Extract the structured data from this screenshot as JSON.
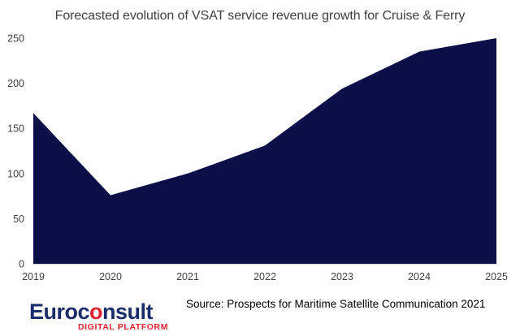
{
  "chart_data": {
    "type": "area",
    "title": "Forecasted evolution of VSAT service revenue growth  for Cruise & Ferry",
    "xlabel": "",
    "ylabel": "",
    "categories": [
      "2019",
      "2020",
      "2021",
      "2022",
      "2023",
      "2024",
      "2025"
    ],
    "values": [
      167,
      76,
      100,
      131,
      194,
      235,
      250
    ],
    "ylim": [
      0,
      250
    ],
    "yticks": [
      0,
      50,
      100,
      150,
      200,
      250
    ],
    "grid": false,
    "legend": "none"
  },
  "colors": {
    "area_fill": "#0b0e47",
    "axis": "#d0d0d0",
    "text": "#404040",
    "logo_blue": "#1b2c6b",
    "logo_red": "#e3222e"
  },
  "footer": {
    "logo": {
      "word_before": "Euroc",
      "word_mark": "o",
      "word_after": "nsult",
      "tagline": "DIGITAL PLATFORM"
    },
    "source": "Source: Prospects for Maritime Satellite Communication 2021"
  }
}
